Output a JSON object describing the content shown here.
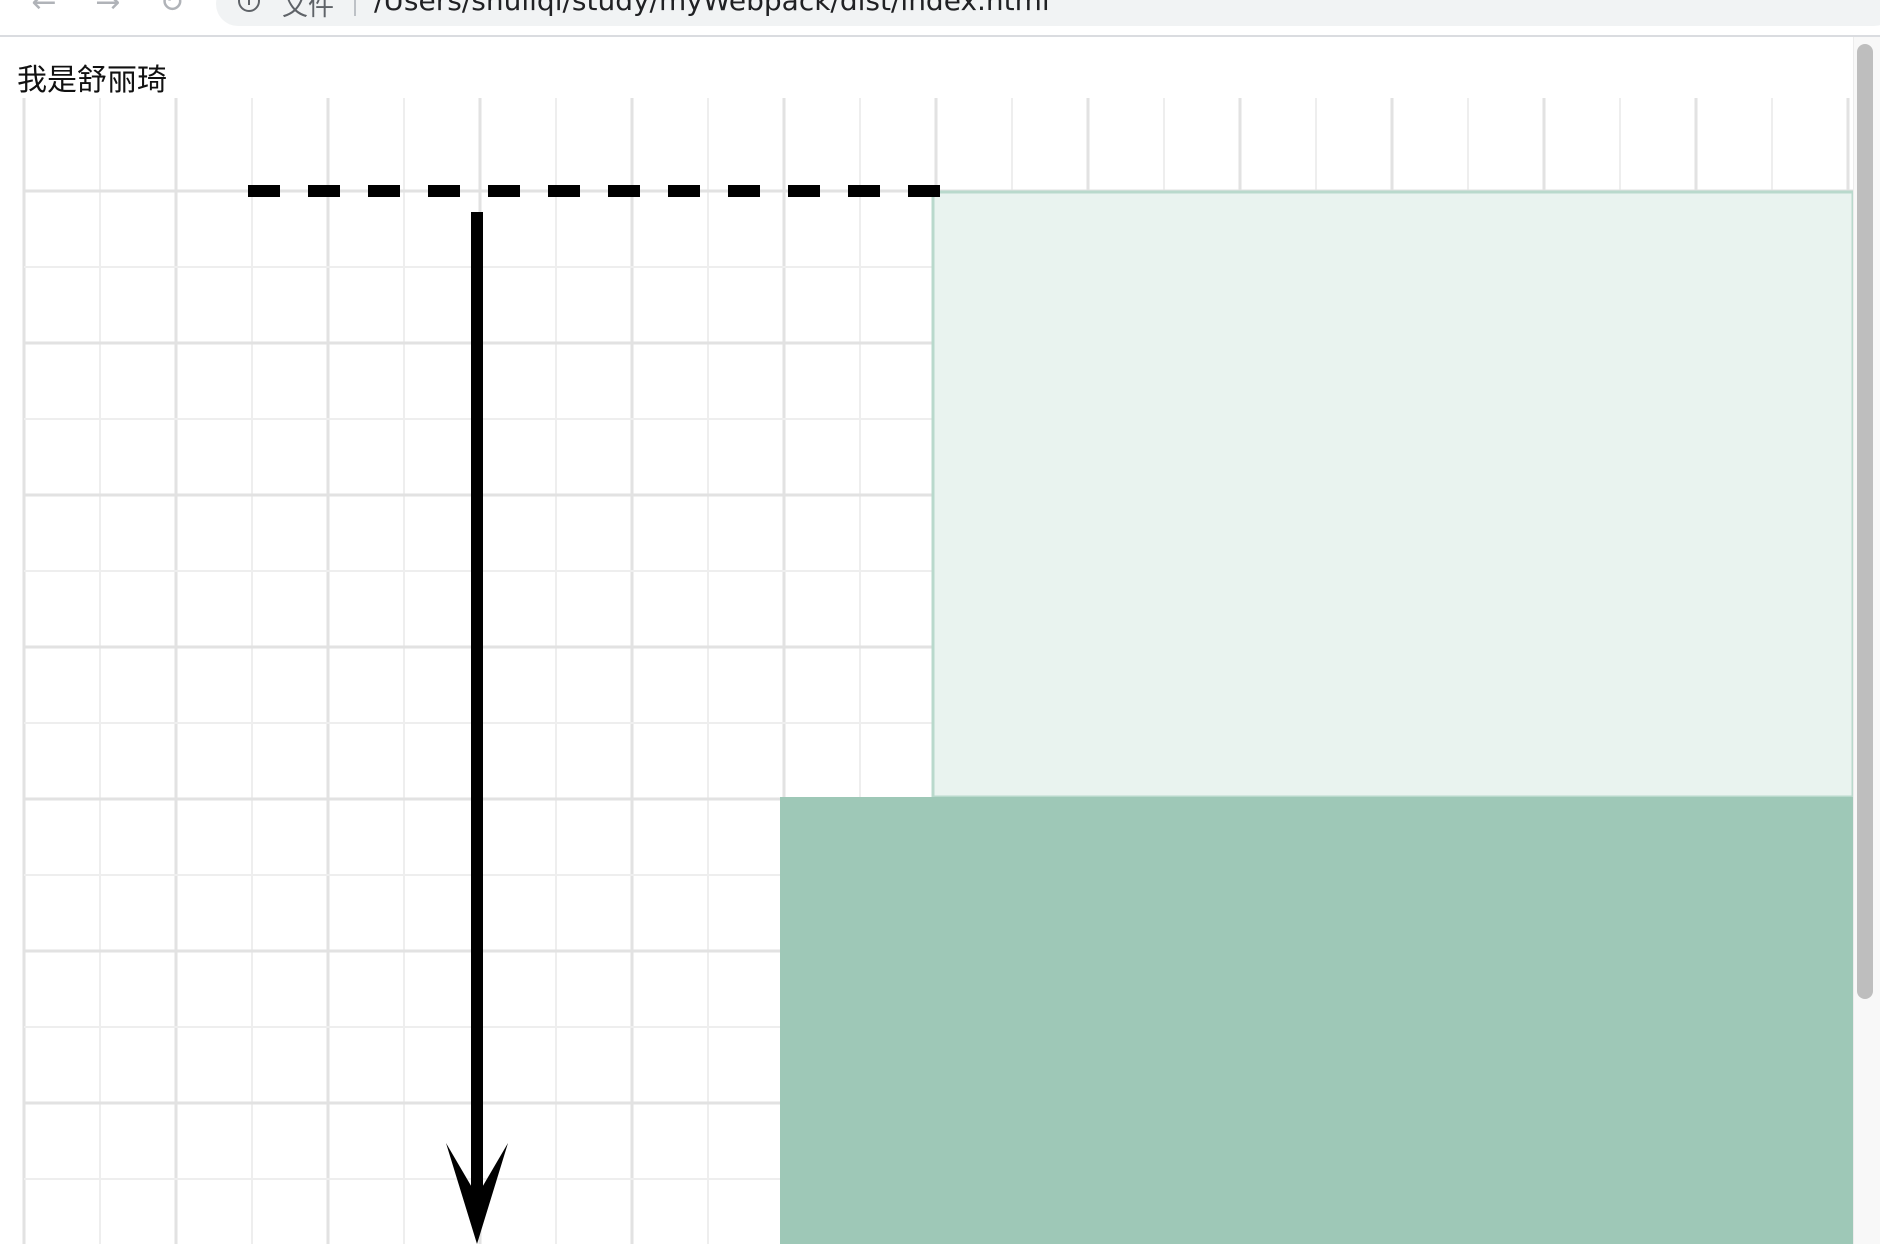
{
  "browser": {
    "back_icon": "arrow-left-icon",
    "forward_icon": "arrow-right-icon",
    "reload_icon": "reload-icon",
    "info_icon": "info-icon",
    "scheme_label": "文件",
    "url": "/Users/shuliqi/study/myWebpack/dist/index.html"
  },
  "page": {
    "heading": "我是舒丽琦"
  },
  "colors": {
    "grid_major": "#e2e2e2",
    "grid_minor": "#eeeeee",
    "light_block_fill": "#e9f3ef",
    "light_block_border": "#b9d9cc",
    "dark_block_fill": "#9ec8b7",
    "line_color": "#000000"
  }
}
